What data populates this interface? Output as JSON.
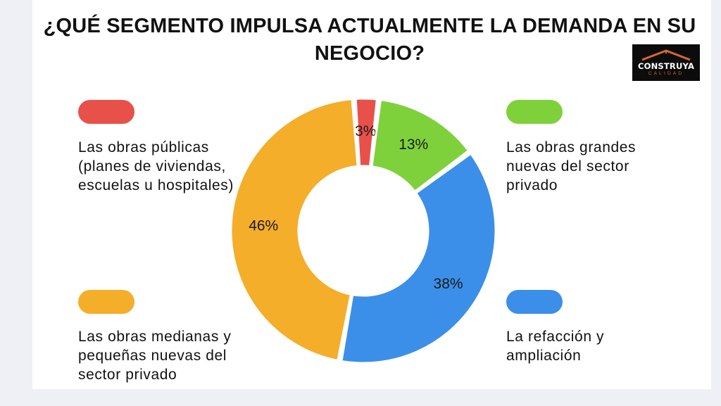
{
  "title": "¿QUÉ SEGMENTO IMPULSA ACTUALMENTE LA DEMANDA EN SU NEGOCIO?",
  "logo": {
    "name": "CONSTRUYA",
    "tagline": "CALIDAD"
  },
  "colors": {
    "publicas": "#e8504a",
    "grandes": "#7fd13b",
    "refaccion": "#3b8fe8",
    "medianas": "#f4ae2a"
  },
  "chart_data": {
    "type": "pie",
    "title": "¿QUÉ SEGMENTO IMPULSA ACTUALMENTE LA DEMANDA EN SU NEGOCIO?",
    "donut": true,
    "slices": [
      {
        "key": "publicas",
        "label": "Las obras públicas (planes de viviendas, escuelas u hospitales)",
        "value": 3,
        "value_label": "3%",
        "color": "#e8504a"
      },
      {
        "key": "grandes",
        "label": "Las obras grandes nuevas del sector privado",
        "value": 13,
        "value_label": "13%",
        "color": "#7fd13b"
      },
      {
        "key": "refaccion",
        "label": "La refacción y ampliación",
        "value": 38,
        "value_label": "38%",
        "color": "#3b8fe8"
      },
      {
        "key": "medianas",
        "label": "Las obras medianas y pequeñas nuevas del sector privado",
        "value": 46,
        "value_label": "46%",
        "color": "#f4ae2a"
      }
    ]
  },
  "legend": {
    "publicas": "Las obras públicas (planes de viviendas, escuelas u hospitales)",
    "grandes": "Las obras grandes nuevas del sector privado",
    "refaccion": "La refacción y ampliación",
    "medianas": "Las obras medianas y pequeñas nuevas del sector privado"
  }
}
